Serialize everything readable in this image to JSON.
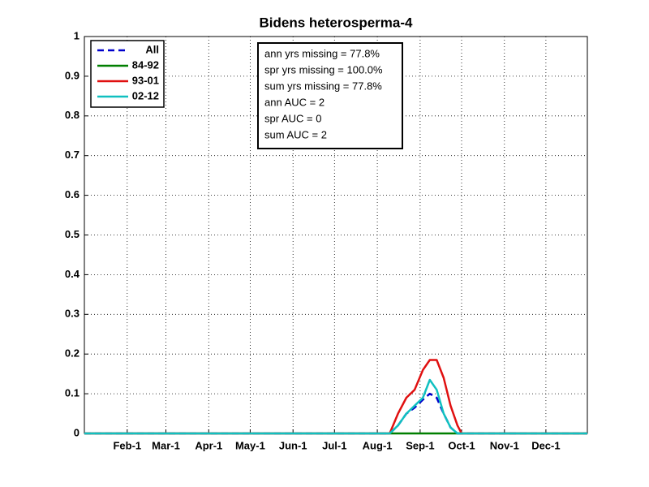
{
  "chart_data": {
    "type": "line",
    "title": "Bidens heterosperma-4",
    "x": [
      1,
      222,
      228,
      234,
      240,
      246,
      251,
      256,
      261,
      266,
      271,
      274,
      365
    ],
    "series": [
      {
        "name": "All",
        "color": "#0000cc",
        "dashed": true,
        "values": [
          0,
          0,
          0.02,
          0.05,
          0.065,
          0.085,
          0.1,
          0.09,
          0.05,
          0.015,
          0,
          0,
          0
        ]
      },
      {
        "name": "84-92",
        "color": "#007f00",
        "values": [
          0,
          0,
          0,
          0,
          0,
          0,
          0,
          0,
          0,
          0,
          0,
          0,
          0
        ]
      },
      {
        "name": "93-01",
        "color": "#e01010",
        "values": [
          0,
          0,
          0.05,
          0.09,
          0.11,
          0.16,
          0.185,
          0.185,
          0.14,
          0.07,
          0.02,
          0,
          0
        ]
      },
      {
        "name": "02-12",
        "color": "#10c0c0",
        "values": [
          0,
          0,
          0.02,
          0.05,
          0.07,
          0.09,
          0.135,
          0.11,
          0.05,
          0.015,
          0,
          0,
          0
        ]
      }
    ],
    "xlim": [
      1,
      365
    ],
    "xticks": [
      {
        "value": 32,
        "label": "Feb-1"
      },
      {
        "value": 60,
        "label": "Mar-1"
      },
      {
        "value": 91,
        "label": "Apr-1"
      },
      {
        "value": 121,
        "label": "May-1"
      },
      {
        "value": 152,
        "label": "Jun-1"
      },
      {
        "value": 182,
        "label": "Jul-1"
      },
      {
        "value": 213,
        "label": "Aug-1"
      },
      {
        "value": 244,
        "label": "Sep-1"
      },
      {
        "value": 274,
        "label": "Oct-1"
      },
      {
        "value": 305,
        "label": "Nov-1"
      },
      {
        "value": 335,
        "label": "Dec-1"
      }
    ],
    "ylim": [
      0,
      1
    ],
    "yticks": [
      0,
      0.1,
      0.2,
      0.3,
      0.4,
      0.5,
      0.6,
      0.7,
      0.8,
      0.9,
      1
    ],
    "grid": true,
    "legend": "northwest",
    "annotation": [
      "ann yrs missing = 77.8%",
      "spr yrs missing = 100.0%",
      "sum yrs missing = 77.8%",
      "ann AUC = 2",
      "spr AUC = 0",
      "sum AUC = 2"
    ]
  }
}
